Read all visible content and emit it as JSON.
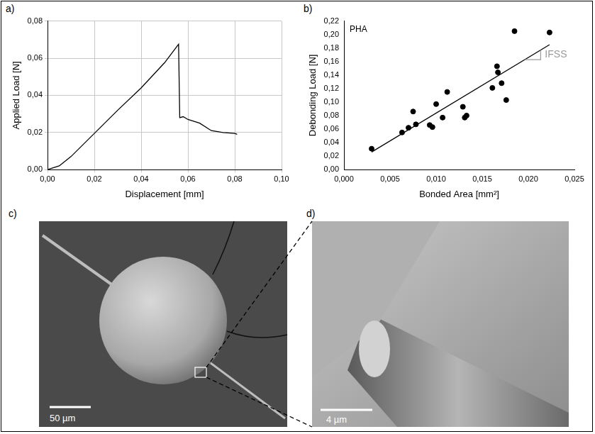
{
  "chart_data": [
    {
      "label": "a)",
      "type": "line",
      "x_label": "Displacement [mm]",
      "y_label": "Applied Load [N]",
      "x": [
        0,
        0.005,
        0.01,
        0.02,
        0.03,
        0.04,
        0.05,
        0.056,
        0.0565,
        0.058,
        0.06,
        0.065,
        0.07,
        0.075,
        0.08,
        0.081
      ],
      "values": [
        0,
        0.002,
        0.007,
        0.0195,
        0.032,
        0.044,
        0.0575,
        0.0675,
        0.028,
        0.0285,
        0.027,
        0.025,
        0.021,
        0.02,
        0.0195,
        0.019
      ],
      "color": "#000000",
      "xlim": [
        0,
        0.1
      ],
      "xticks": [
        {
          "value": 0,
          "label": "0,00"
        },
        {
          "value": 0.02,
          "label": "0,02"
        },
        {
          "value": 0.04,
          "label": "0,04"
        },
        {
          "value": 0.06,
          "label": "0,06"
        },
        {
          "value": 0.08,
          "label": "0,08"
        },
        {
          "value": 0.1,
          "label": "0,10"
        }
      ],
      "ylim": [
        0,
        0.08
      ],
      "yticks": [
        {
          "value": 0,
          "label": "0,00"
        },
        {
          "value": 0.02,
          "label": "0,02"
        },
        {
          "value": 0.04,
          "label": "0,04"
        },
        {
          "value": 0.06,
          "label": "0,06"
        },
        {
          "value": 0.08,
          "label": "0,08"
        }
      ],
      "grid": true
    },
    {
      "label": "b)",
      "type": "scatter",
      "x_label": "Bonded Area [mm²]",
      "y_label": "Debonding Load [N]",
      "annotations": [
        "PHA",
        "IFSS"
      ],
      "series": [
        {
          "type": "scatter",
          "marker": "circle",
          "color": "#000000",
          "x": [
            0.003,
            0.0063,
            0.007,
            0.0075,
            0.0078,
            0.0093,
            0.0096,
            0.01,
            0.0107,
            0.0112,
            0.0129,
            0.0131,
            0.0133,
            0.0161,
            0.0166,
            0.0167,
            0.0171,
            0.0176,
            0.0185,
            0.0223
          ],
          "values": [
            0.031,
            0.055,
            0.062,
            0.086,
            0.067,
            0.066,
            0.063,
            0.097,
            0.077,
            0.115,
            0.093,
            0.077,
            0.08,
            0.121,
            0.153,
            0.144,
            0.128,
            0.103,
            0.205,
            0.203
          ]
        },
        {
          "type": "line",
          "line_style": "solid",
          "color": "#000000",
          "x": [
            0.003,
            0.0223
          ],
          "values": [
            0.026,
            0.185
          ]
        }
      ],
      "xlim": [
        0,
        0.025
      ],
      "xticks": [
        {
          "value": 0,
          "label": "0,000"
        },
        {
          "value": 0.005,
          "label": "0,005"
        },
        {
          "value": 0.01,
          "label": "0,010"
        },
        {
          "value": 0.015,
          "label": "0,015"
        },
        {
          "value": 0.02,
          "label": "0,020"
        },
        {
          "value": 0.025,
          "label": "0,025"
        }
      ],
      "ylim": [
        0,
        0.22
      ],
      "yticks": [
        {
          "value": 0,
          "label": "0,00"
        },
        {
          "value": 0.02,
          "label": "0,02"
        },
        {
          "value": 0.04,
          "label": "0,04"
        },
        {
          "value": 0.06,
          "label": "0,06"
        },
        {
          "value": 0.08,
          "label": "0,08"
        },
        {
          "value": 0.1,
          "label": "0,10"
        },
        {
          "value": 0.12,
          "label": "0,12"
        },
        {
          "value": 0.14,
          "label": "0,14"
        },
        {
          "value": 0.16,
          "label": "0,16"
        },
        {
          "value": 0.18,
          "label": "0,18"
        },
        {
          "value": 0.2,
          "label": "0,20"
        },
        {
          "value": 0.22,
          "label": "0,22"
        }
      ],
      "grid": false
    }
  ],
  "images": [
    {
      "label": "c)",
      "scale_bar": "50 µm"
    },
    {
      "label": "d)",
      "scale_bar": "4 µm"
    }
  ]
}
